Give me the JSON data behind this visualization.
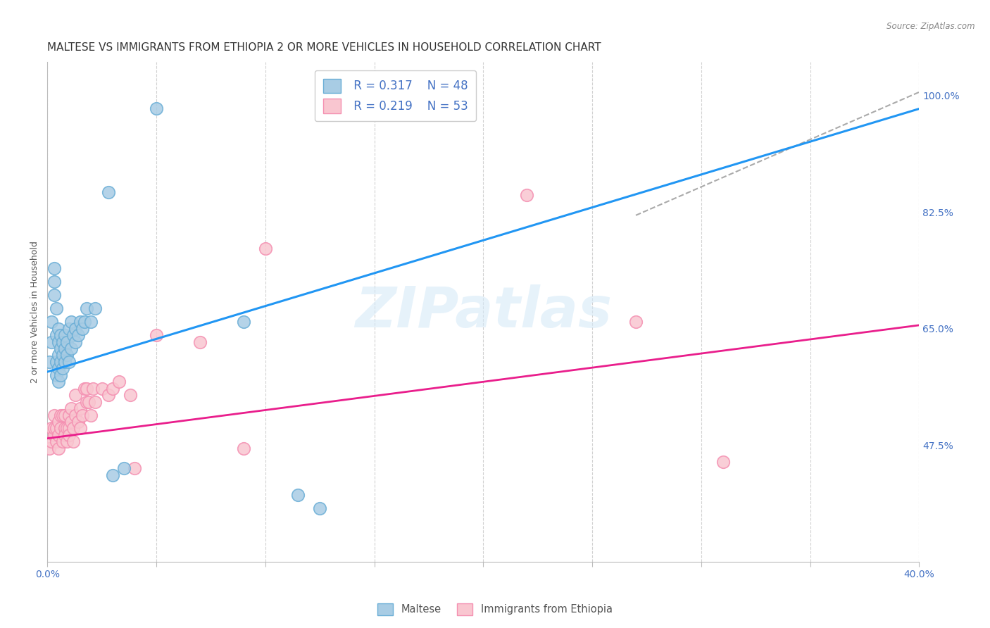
{
  "title": "MALTESE VS IMMIGRANTS FROM ETHIOPIA 2 OR MORE VEHICLES IN HOUSEHOLD CORRELATION CHART",
  "source": "Source: ZipAtlas.com",
  "ylabel": "2 or more Vehicles in Household",
  "xlim": [
    0.0,
    0.4
  ],
  "ylim": [
    0.3,
    1.05
  ],
  "xticks": [
    0.0,
    0.05,
    0.1,
    0.15,
    0.2,
    0.25,
    0.3,
    0.35,
    0.4
  ],
  "xticklabels": [
    "0.0%",
    "",
    "",
    "",
    "",
    "",
    "",
    "",
    "40.0%"
  ],
  "yticklabels_right": [
    "47.5%",
    "65.0%",
    "82.5%",
    "100.0%"
  ],
  "yticks_right": [
    0.475,
    0.65,
    0.825,
    1.0
  ],
  "legend_r_maltese": "R = 0.317",
  "legend_n_maltese": "N = 48",
  "legend_r_ethiopia": "R = 0.219",
  "legend_n_ethiopia": "N = 53",
  "maltese_color": "#a8cce4",
  "malta_edge_color": "#6aaed6",
  "ethiopia_color": "#f9c6d0",
  "ethiopia_edge_color": "#f48fb1",
  "regression_blue": "#2196f3",
  "regression_pink": "#e91e8c",
  "axis_color": "#4472c4",
  "maltese_x": [
    0.001,
    0.002,
    0.002,
    0.003,
    0.003,
    0.003,
    0.004,
    0.004,
    0.004,
    0.004,
    0.005,
    0.005,
    0.005,
    0.005,
    0.005,
    0.006,
    0.006,
    0.006,
    0.006,
    0.007,
    0.007,
    0.007,
    0.008,
    0.008,
    0.008,
    0.009,
    0.009,
    0.01,
    0.01,
    0.011,
    0.011,
    0.012,
    0.013,
    0.013,
    0.014,
    0.015,
    0.016,
    0.017,
    0.018,
    0.02,
    0.022,
    0.028,
    0.03,
    0.035,
    0.05,
    0.09,
    0.115,
    0.125
  ],
  "maltese_y": [
    0.6,
    0.63,
    0.66,
    0.7,
    0.72,
    0.74,
    0.58,
    0.6,
    0.64,
    0.68,
    0.57,
    0.59,
    0.61,
    0.63,
    0.65,
    0.58,
    0.6,
    0.62,
    0.64,
    0.59,
    0.61,
    0.63,
    0.6,
    0.62,
    0.64,
    0.61,
    0.63,
    0.6,
    0.65,
    0.62,
    0.66,
    0.64,
    0.63,
    0.65,
    0.64,
    0.66,
    0.65,
    0.66,
    0.68,
    0.66,
    0.68,
    0.855,
    0.43,
    0.44,
    0.98,
    0.66,
    0.4,
    0.38
  ],
  "ethiopia_x": [
    0.001,
    0.002,
    0.002,
    0.003,
    0.003,
    0.003,
    0.004,
    0.004,
    0.005,
    0.005,
    0.005,
    0.006,
    0.006,
    0.007,
    0.007,
    0.008,
    0.008,
    0.008,
    0.009,
    0.009,
    0.01,
    0.01,
    0.01,
    0.011,
    0.011,
    0.012,
    0.012,
    0.013,
    0.013,
    0.014,
    0.015,
    0.015,
    0.016,
    0.017,
    0.018,
    0.018,
    0.019,
    0.02,
    0.021,
    0.022,
    0.025,
    0.028,
    0.03,
    0.033,
    0.038,
    0.04,
    0.05,
    0.07,
    0.09,
    0.1,
    0.22,
    0.27,
    0.31
  ],
  "ethiopia_y": [
    0.47,
    0.5,
    0.48,
    0.49,
    0.5,
    0.52,
    0.48,
    0.5,
    0.49,
    0.51,
    0.47,
    0.5,
    0.52,
    0.48,
    0.52,
    0.5,
    0.52,
    0.49,
    0.5,
    0.48,
    0.5,
    0.52,
    0.49,
    0.51,
    0.53,
    0.5,
    0.48,
    0.52,
    0.55,
    0.51,
    0.5,
    0.53,
    0.52,
    0.56,
    0.54,
    0.56,
    0.54,
    0.52,
    0.56,
    0.54,
    0.56,
    0.55,
    0.56,
    0.57,
    0.55,
    0.44,
    0.64,
    0.63,
    0.47,
    0.77,
    0.85,
    0.66,
    0.45
  ],
  "blue_line": [
    0.0,
    0.4,
    0.585,
    0.98
  ],
  "pink_line": [
    0.0,
    0.4,
    0.485,
    0.655
  ],
  "dashed_line": [
    0.27,
    0.4,
    0.82,
    1.005
  ],
  "background_color": "#ffffff",
  "grid_color": "#cccccc",
  "title_fontsize": 11,
  "label_fontsize": 9,
  "tick_fontsize": 10
}
